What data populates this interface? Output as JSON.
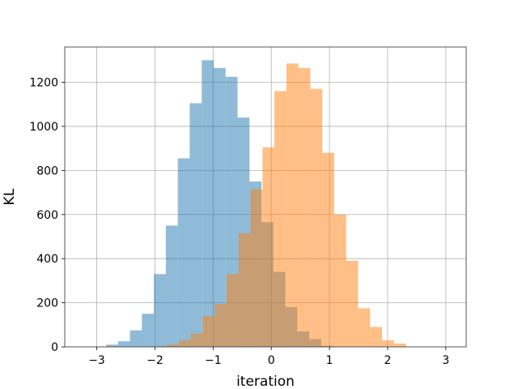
{
  "chart_data": {
    "type": "bar",
    "xlabel": "iteration",
    "ylabel": "KL",
    "xlim": [
      -3.55,
      3.35
    ],
    "ylim": [
      0,
      1360
    ],
    "xticks": [
      -3,
      -2,
      -1,
      0,
      1,
      2,
      3
    ],
    "yticks": [
      0,
      200,
      400,
      600,
      800,
      1000,
      1200
    ],
    "xtick_labels": [
      "−3",
      "−2",
      "−1",
      "0",
      "1",
      "2",
      "3"
    ],
    "ytick_labels": [
      "0",
      "200",
      "400",
      "600",
      "800",
      "1000",
      "1200"
    ],
    "grid": true,
    "bin_width": 0.2054,
    "series": [
      {
        "color": "#1f77b4",
        "opacity": 0.5,
        "bins": [
          [
            -2.84,
            10
          ],
          [
            -2.634,
            25
          ],
          [
            -2.429,
            75
          ],
          [
            -2.224,
            150
          ],
          [
            -2.018,
            330
          ],
          [
            -1.813,
            550
          ],
          [
            -1.607,
            855
          ],
          [
            -1.402,
            1105
          ],
          [
            -1.196,
            1300
          ],
          [
            -0.991,
            1265
          ],
          [
            -0.785,
            1225
          ],
          [
            -0.58,
            1040
          ],
          [
            -0.375,
            750
          ],
          [
            -0.169,
            565
          ],
          [
            0.036,
            340
          ],
          [
            0.242,
            180
          ],
          [
            0.447,
            70
          ],
          [
            0.653,
            35
          ],
          [
            0.858,
            5
          ]
        ]
      },
      {
        "color": "#ff7f0e",
        "opacity": 0.5,
        "bins": [
          [
            -2.0,
            3
          ],
          [
            -1.795,
            10
          ],
          [
            -1.589,
            30
          ],
          [
            -1.384,
            60
          ],
          [
            -1.179,
            140
          ],
          [
            -0.973,
            195
          ],
          [
            -0.768,
            330
          ],
          [
            -0.562,
            515
          ],
          [
            -0.357,
            715
          ],
          [
            -0.151,
            905
          ],
          [
            0.054,
            1160
          ],
          [
            0.26,
            1285
          ],
          [
            0.465,
            1265
          ],
          [
            0.671,
            1170
          ],
          [
            0.876,
            880
          ],
          [
            1.082,
            600
          ],
          [
            1.287,
            390
          ],
          [
            1.493,
            175
          ],
          [
            1.698,
            90
          ],
          [
            1.903,
            30
          ],
          [
            2.109,
            15
          ]
        ]
      }
    ]
  }
}
